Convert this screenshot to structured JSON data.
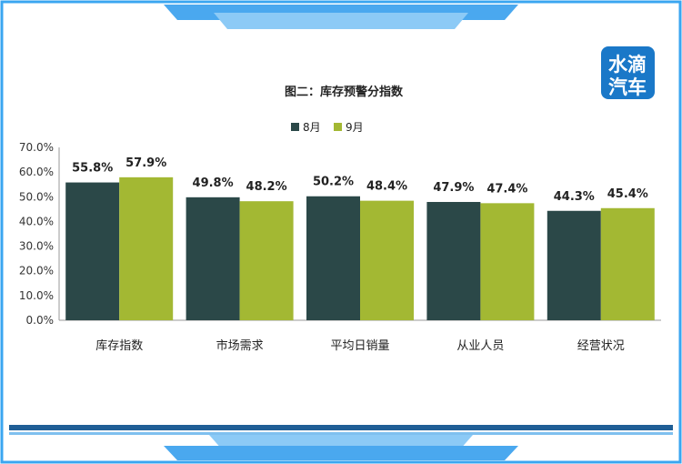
{
  "logo": {
    "line1": "水滴",
    "line2": "汽车",
    "color": "#1a78c8"
  },
  "chart_data": {
    "type": "bar",
    "title": "图二：库存预警分指数",
    "categories": [
      "库存指数",
      "市场需求",
      "平均日销量",
      "从业人员",
      "经营状况"
    ],
    "series": [
      {
        "name": "8月",
        "color": "#2b4848",
        "values": [
          55.8,
          49.8,
          50.2,
          47.9,
          44.3
        ],
        "labels": [
          "55.8%",
          "49.8%",
          "50.2%",
          "47.9%",
          "44.3%"
        ]
      },
      {
        "name": "9月",
        "color": "#a3b833",
        "values": [
          57.9,
          48.2,
          48.4,
          47.4,
          45.4
        ],
        "labels": [
          "57.9%",
          "48.2%",
          "48.4%",
          "47.4%",
          "45.4%"
        ]
      }
    ],
    "y_ticks": [
      "0.0%",
      "10.0%",
      "20.0%",
      "30.0%",
      "40.0%",
      "50.0%",
      "60.0%",
      "70.0%"
    ],
    "ylim": [
      0,
      70
    ],
    "legend_position": "top-center",
    "grid": false
  }
}
